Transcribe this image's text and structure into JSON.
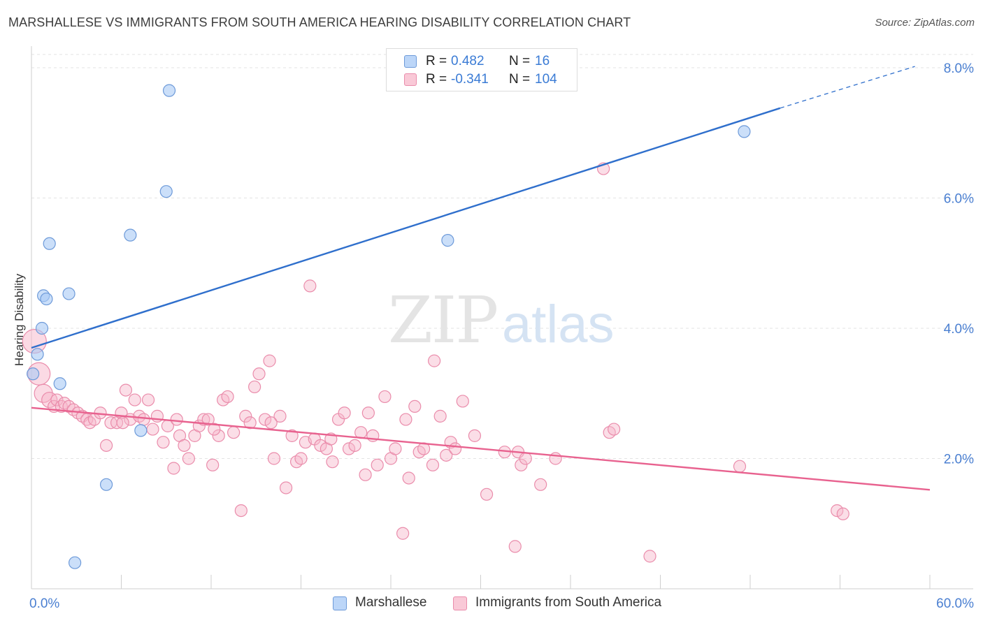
{
  "title": "MARSHALLESE VS IMMIGRANTS FROM SOUTH AMERICA HEARING DISABILITY CORRELATION CHART",
  "source": "Source: ZipAtlas.com",
  "watermark": {
    "zip": "ZIP",
    "atlas": "atlas"
  },
  "legend_top": [
    {
      "r_label": "R =",
      "r_value": "0.482",
      "n_label": "N =",
      "n_value": "16"
    },
    {
      "r_label": "R =",
      "r_value": "-0.341",
      "n_label": "N =",
      "n_value": "104"
    }
  ],
  "legend_bottom": [
    {
      "label": "Marshallese"
    },
    {
      "label": "Immigrants from South America"
    }
  ],
  "colors": {
    "marshallese_fill": "#a9c9f5",
    "marshallese_stroke": "#6d9ad9",
    "marshallese_line": "#2f6fcc",
    "immigrants_fill": "#f7b6c9",
    "immigrants_stroke": "#ea8cab",
    "immigrants_line": "#e8628f",
    "axis_label": "#4a7fd1",
    "grid": "#e3e3e3"
  },
  "chart_data": {
    "type": "scatter",
    "title": "MARSHALLESE VS IMMIGRANTS FROM SOUTH AMERICA HEARING DISABILITY CORRELATION CHART",
    "xlabel": "",
    "ylabel": "Hearing Disability",
    "xlim": [
      0,
      60
    ],
    "ylim": [
      0,
      8.2
    ],
    "x_tick_labels": [
      {
        "value": 0,
        "label": "0.0%"
      },
      {
        "value": 60,
        "label": "60.0%"
      }
    ],
    "x_minor_ticks": [
      6,
      12,
      18,
      24,
      30,
      36,
      42,
      48,
      54
    ],
    "y_ticks": [
      {
        "value": 2,
        "label": "2.0%"
      },
      {
        "value": 4,
        "label": "4.0%"
      },
      {
        "value": 6,
        "label": "6.0%"
      },
      {
        "value": 8,
        "label": "8.0%"
      }
    ],
    "grid": true,
    "series": [
      {
        "name": "Marshallese",
        "r": 0.482,
        "n": 16,
        "trend": {
          "x0": 0,
          "y0": 3.7,
          "x1": 50,
          "y1": 7.38,
          "dashed_to_x": 59,
          "dashed_to_y": 8.02
        },
        "points": [
          [
            0.1,
            3.3
          ],
          [
            0.4,
            3.6
          ],
          [
            0.7,
            4.0
          ],
          [
            0.8,
            4.5
          ],
          [
            1.0,
            4.45
          ],
          [
            1.2,
            5.3
          ],
          [
            1.9,
            3.15
          ],
          [
            2.5,
            4.53
          ],
          [
            5.0,
            1.6
          ],
          [
            6.6,
            5.43
          ],
          [
            7.3,
            2.43
          ],
          [
            9.0,
            6.1
          ],
          [
            9.2,
            7.65
          ],
          [
            27.8,
            5.35
          ],
          [
            47.6,
            7.02
          ],
          [
            2.9,
            0.4
          ]
        ]
      },
      {
        "name": "Immigrants from South America",
        "r": -0.341,
        "n": 104,
        "trend": {
          "x0": 0,
          "y0": 2.78,
          "x1": 60,
          "y1": 1.52
        },
        "big_points": [
          [
            0.2,
            3.8,
            17
          ],
          [
            0.5,
            3.3,
            16
          ],
          [
            0.8,
            3.0,
            13
          ],
          [
            1.2,
            2.9,
            11
          ]
        ],
        "points": [
          [
            1.5,
            2.8
          ],
          [
            1.7,
            2.9
          ],
          [
            2.0,
            2.8
          ],
          [
            2.2,
            2.85
          ],
          [
            2.5,
            2.8
          ],
          [
            2.8,
            2.75
          ],
          [
            3.1,
            2.7
          ],
          [
            3.4,
            2.65
          ],
          [
            3.7,
            2.6
          ],
          [
            3.9,
            2.55
          ],
          [
            4.2,
            2.6
          ],
          [
            4.6,
            2.7
          ],
          [
            5.0,
            2.2
          ],
          [
            5.3,
            2.55
          ],
          [
            5.7,
            2.55
          ],
          [
            6.0,
            2.7
          ],
          [
            6.3,
            3.05
          ],
          [
            6.6,
            2.6
          ],
          [
            6.9,
            2.9
          ],
          [
            7.2,
            2.65
          ],
          [
            7.5,
            2.6
          ],
          [
            7.8,
            2.9
          ],
          [
            8.1,
            2.45
          ],
          [
            8.4,
            2.65
          ],
          [
            8.8,
            2.25
          ],
          [
            9.1,
            2.5
          ],
          [
            9.5,
            1.85
          ],
          [
            9.9,
            2.35
          ],
          [
            10.2,
            2.2
          ],
          [
            10.5,
            2.0
          ],
          [
            10.9,
            2.35
          ],
          [
            11.2,
            2.5
          ],
          [
            11.5,
            2.6
          ],
          [
            11.8,
            2.6
          ],
          [
            12.1,
            1.9
          ],
          [
            12.5,
            2.35
          ],
          [
            12.8,
            2.9
          ],
          [
            13.1,
            2.95
          ],
          [
            13.5,
            2.4
          ],
          [
            14.0,
            1.2
          ],
          [
            14.3,
            2.65
          ],
          [
            14.6,
            2.55
          ],
          [
            14.9,
            3.1
          ],
          [
            15.2,
            3.3
          ],
          [
            15.6,
            2.6
          ],
          [
            15.9,
            3.5
          ],
          [
            16.2,
            2.0
          ],
          [
            16.6,
            2.65
          ],
          [
            17.0,
            1.55
          ],
          [
            17.4,
            2.35
          ],
          [
            17.7,
            1.95
          ],
          [
            18.0,
            2.0
          ],
          [
            18.3,
            2.25
          ],
          [
            18.6,
            4.65
          ],
          [
            18.9,
            2.3
          ],
          [
            19.3,
            2.2
          ],
          [
            19.7,
            2.15
          ],
          [
            20.1,
            1.95
          ],
          [
            20.5,
            2.6
          ],
          [
            20.9,
            2.7
          ],
          [
            21.2,
            2.15
          ],
          [
            21.6,
            2.2
          ],
          [
            22.0,
            2.4
          ],
          [
            22.3,
            1.75
          ],
          [
            22.5,
            2.7
          ],
          [
            22.8,
            2.35
          ],
          [
            23.1,
            1.9
          ],
          [
            23.6,
            2.95
          ],
          [
            24.0,
            2.0
          ],
          [
            24.3,
            2.15
          ],
          [
            24.8,
            0.85
          ],
          [
            25.2,
            1.7
          ],
          [
            25.6,
            2.8
          ],
          [
            25.9,
            2.1
          ],
          [
            26.2,
            2.15
          ],
          [
            26.8,
            1.9
          ],
          [
            26.9,
            3.5
          ],
          [
            27.3,
            2.65
          ],
          [
            27.7,
            2.05
          ],
          [
            28.0,
            2.25
          ],
          [
            28.3,
            2.15
          ],
          [
            28.8,
            2.88
          ],
          [
            29.6,
            2.35
          ],
          [
            30.4,
            1.45
          ],
          [
            32.3,
            0.65
          ],
          [
            32.5,
            2.1
          ],
          [
            32.7,
            1.9
          ],
          [
            33.0,
            2.0
          ],
          [
            34.0,
            1.6
          ],
          [
            38.2,
            6.45
          ],
          [
            38.6,
            2.4
          ],
          [
            38.9,
            2.45
          ],
          [
            41.3,
            0.5
          ],
          [
            47.3,
            1.88
          ],
          [
            53.8,
            1.2
          ],
          [
            54.2,
            1.15
          ],
          [
            6.1,
            2.55
          ],
          [
            9.7,
            2.6
          ],
          [
            12.2,
            2.45
          ],
          [
            16.0,
            2.55
          ],
          [
            20.0,
            2.3
          ],
          [
            25.0,
            2.6
          ],
          [
            31.6,
            2.1
          ],
          [
            35.0,
            2.0
          ]
        ]
      }
    ]
  }
}
